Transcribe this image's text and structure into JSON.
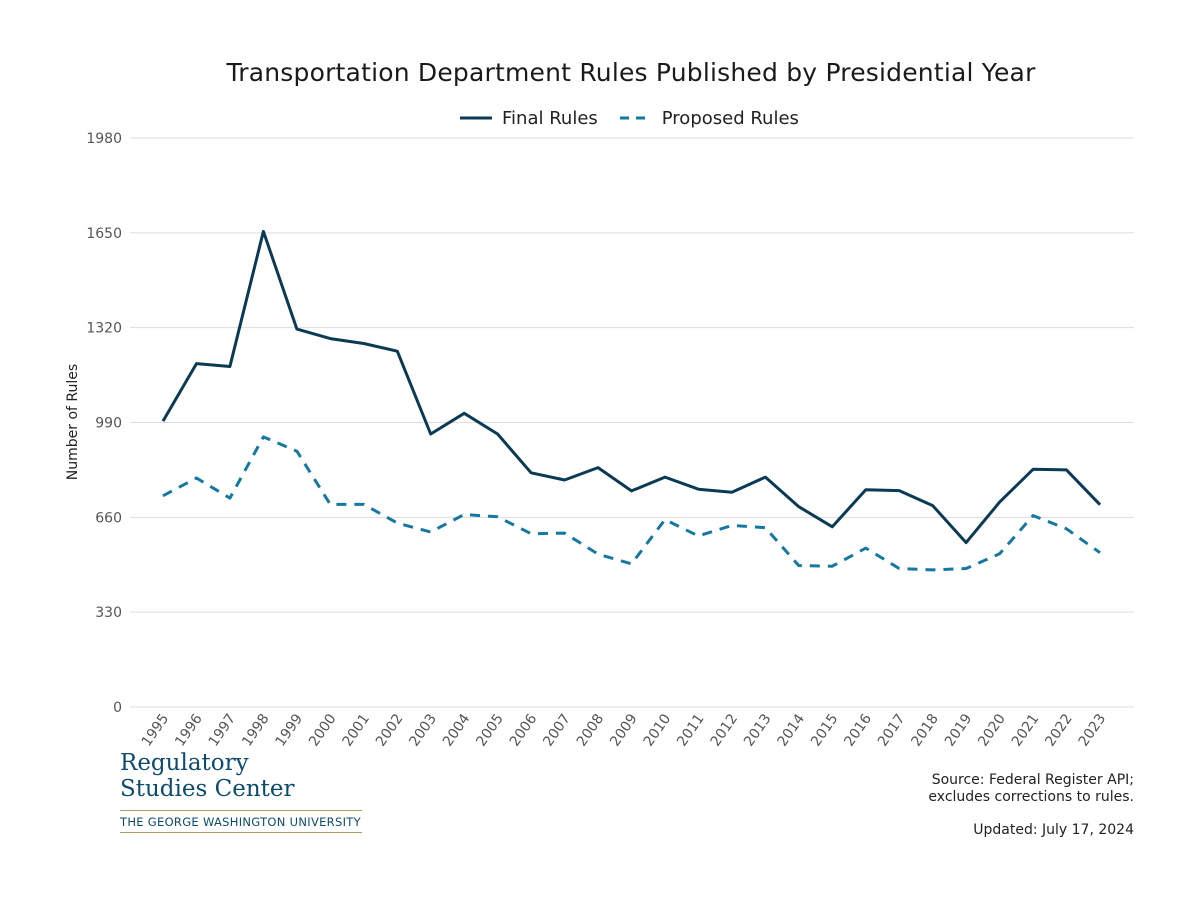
{
  "colors": {
    "final": "#0b3a55",
    "proposed": "#1478a3",
    "grid": "#dddddd"
  },
  "chart_data": {
    "type": "line",
    "title": "Transportation Department Rules Published by Presidential Year",
    "ylabel": "Number of Rules",
    "xlabel": "",
    "ylim": [
      0,
      1980
    ],
    "yticks": [
      0,
      330,
      660,
      990,
      1320,
      1650,
      1980
    ],
    "x": [
      "1995",
      "1996",
      "1997",
      "1998",
      "1999",
      "2000",
      "2001",
      "2002",
      "2003",
      "2004",
      "2005",
      "2006",
      "2007",
      "2008",
      "2009",
      "2010",
      "2011",
      "2012",
      "2013",
      "2014",
      "2015",
      "2016",
      "2017",
      "2018",
      "2019",
      "2020",
      "2021",
      "2022",
      "2023"
    ],
    "series": [
      {
        "name": "Final Rules",
        "style": "solid",
        "values": [
          995,
          1195,
          1185,
          1655,
          1315,
          1282,
          1265,
          1238,
          950,
          1022,
          950,
          815,
          790,
          833,
          752,
          800,
          758,
          747,
          800,
          697,
          627,
          756,
          753,
          701,
          572,
          713,
          827,
          825,
          704
        ]
      },
      {
        "name": "Proposed Rules",
        "style": "dashed",
        "values": [
          735,
          797,
          727,
          940,
          890,
          705,
          705,
          640,
          609,
          670,
          662,
          603,
          605,
          532,
          498,
          652,
          595,
          632,
          624,
          492,
          490,
          553,
          482,
          477,
          482,
          533,
          666,
          620,
          537
        ]
      }
    ],
    "legend_position": "top-center",
    "grid": true
  },
  "logo": {
    "line1": "Regulatory",
    "line2": "Studies Center",
    "university": "THE GEORGE WASHINGTON UNIVERSITY"
  },
  "source": {
    "line1": "Source: Federal Register API;",
    "line2": "excludes corrections to rules."
  },
  "updated": "Updated: July 17, 2024"
}
